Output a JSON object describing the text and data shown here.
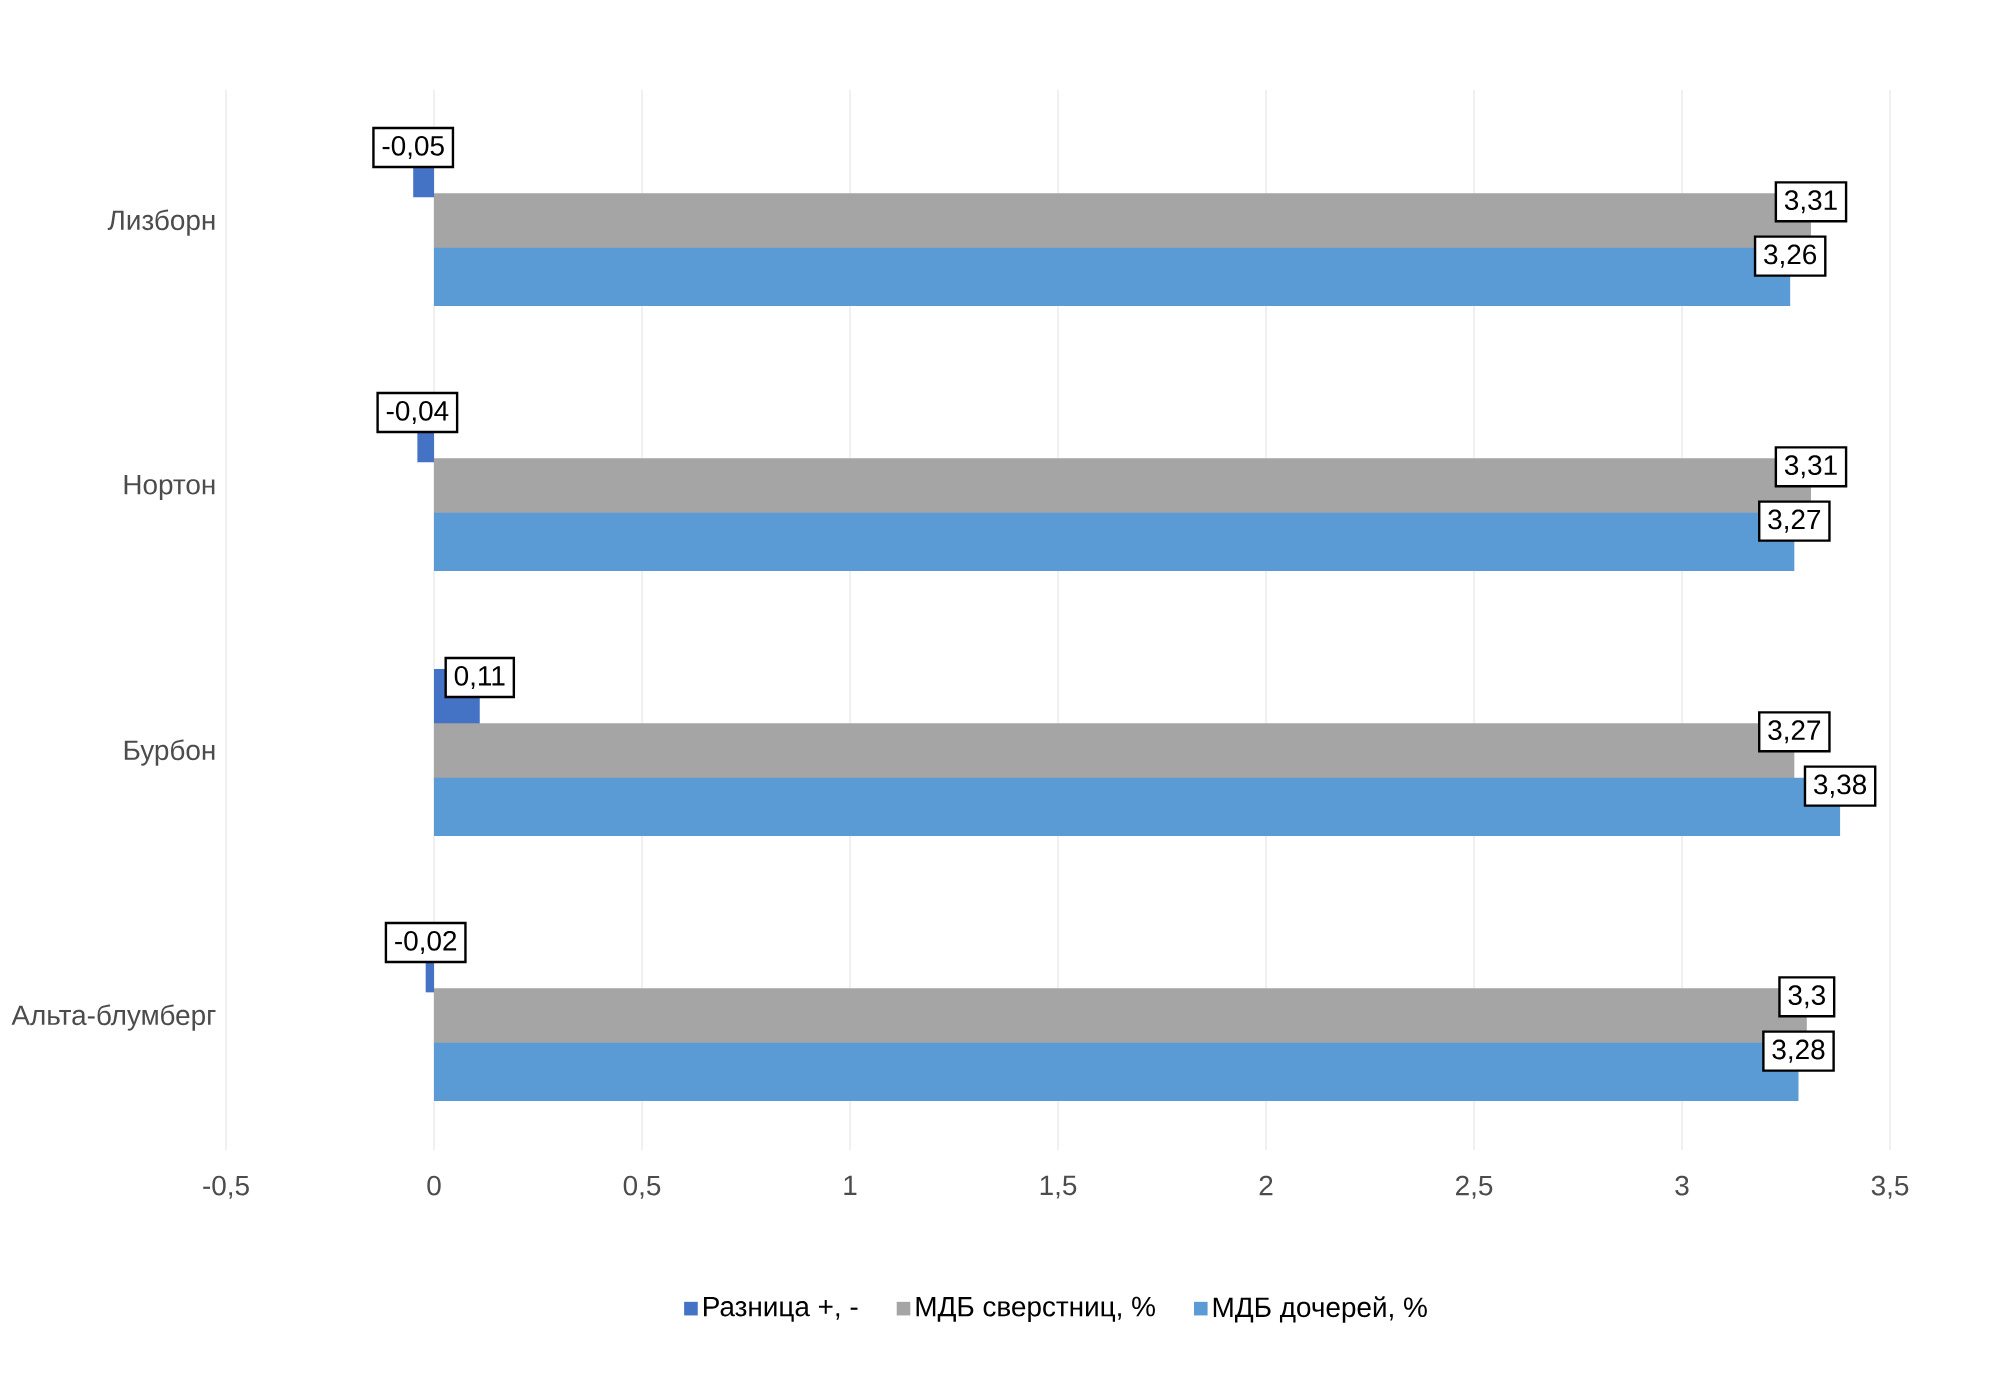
{
  "chart_data": {
    "type": "bar",
    "orientation": "horizontal",
    "categories": [
      "Лизборн",
      "Нортон",
      "Бурбон",
      "Альта-блумберг"
    ],
    "series": [
      {
        "name": "Разница +, -",
        "color": "#4472c4",
        "values": [
          -0.05,
          -0.04,
          0.11,
          -0.02
        ],
        "value_labels": [
          "-0,05",
          "-0,04",
          "0,11",
          "-0,02"
        ]
      },
      {
        "name": "МДБ сверстниц, %",
        "color": "#a5a5a5",
        "values": [
          3.31,
          3.31,
          3.27,
          3.3
        ],
        "value_labels": [
          "3,31",
          "3,31",
          "3,27",
          "3,3"
        ]
      },
      {
        "name": "МДБ дочерей, %",
        "color": "#5b9bd5",
        "values": [
          3.26,
          3.27,
          3.38,
          3.28
        ],
        "value_labels": [
          "3,26",
          "3,27",
          "3,38",
          "3,28"
        ]
      }
    ],
    "xlim": [
      -0.5,
      3.5
    ],
    "xticks": [
      {
        "value": -0.5,
        "label": "-0,5"
      },
      0,
      {
        "value": 0.5,
        "label": "0,5"
      },
      1,
      {
        "value": 1.5,
        "label": "1,5"
      },
      2,
      {
        "value": 2.5,
        "label": "2,5"
      },
      3,
      {
        "value": 3.5,
        "label": "3,5"
      }
    ],
    "grid": "x",
    "legend": "bottom"
  }
}
